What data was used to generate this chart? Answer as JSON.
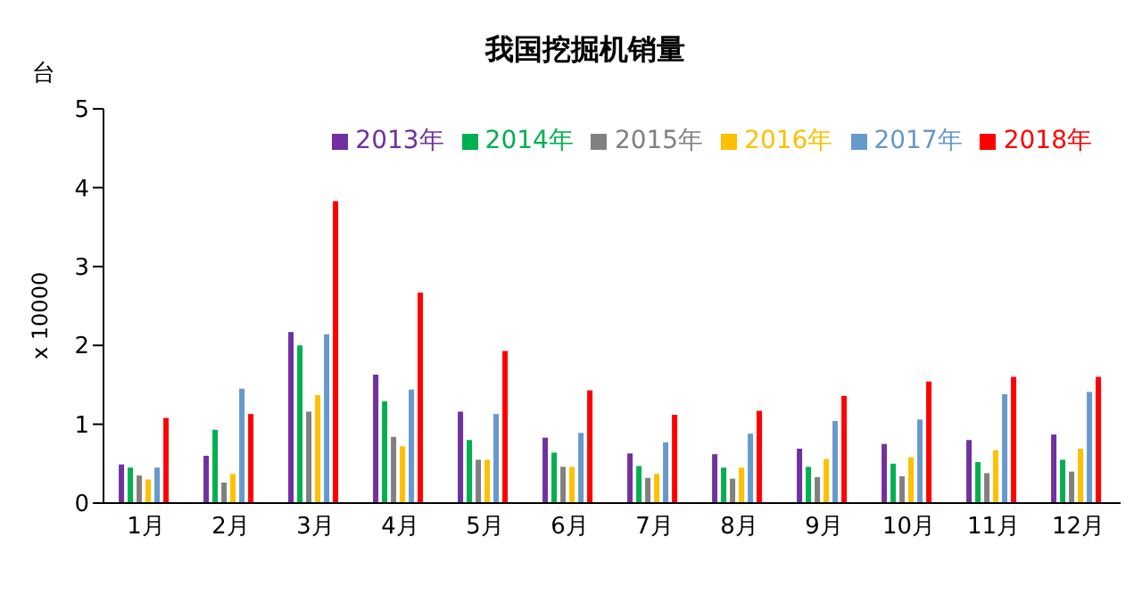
{
  "chart_data": {
    "type": "bar",
    "title": "我国挖掘机销量",
    "ylabel": "x 10000",
    "annotations": [
      "台"
    ],
    "categories": [
      "1月",
      "2月",
      "3月",
      "4月",
      "5月",
      "6月",
      "7月",
      "8月",
      "9月",
      "10月",
      "11月",
      "12月"
    ],
    "series": [
      {
        "name": "2013年",
        "color": "#7030a0",
        "values": [
          0.49,
          0.6,
          2.17,
          1.63,
          1.16,
          0.83,
          0.63,
          0.62,
          0.69,
          0.75,
          0.8,
          0.87
        ]
      },
      {
        "name": "2014年",
        "color": "#00b050",
        "values": [
          0.45,
          0.93,
          2.0,
          1.29,
          0.8,
          0.64,
          0.47,
          0.45,
          0.46,
          0.5,
          0.52,
          0.55
        ]
      },
      {
        "name": "2015年",
        "color": "#808080",
        "values": [
          0.35,
          0.26,
          1.16,
          0.84,
          0.55,
          0.46,
          0.32,
          0.31,
          0.33,
          0.34,
          0.38,
          0.4
        ]
      },
      {
        "name": "2016年",
        "color": "#ffc000",
        "values": [
          0.3,
          0.37,
          1.37,
          0.72,
          0.55,
          0.46,
          0.37,
          0.45,
          0.56,
          0.58,
          0.67,
          0.69
        ]
      },
      {
        "name": "2017年",
        "color": "#6699cc",
        "values": [
          0.45,
          1.45,
          2.14,
          1.44,
          1.13,
          0.89,
          0.77,
          0.88,
          1.04,
          1.06,
          1.38,
          1.41
        ]
      },
      {
        "name": "2018年",
        "color": "#ff0000",
        "values": [
          1.08,
          1.13,
          3.83,
          2.67,
          1.93,
          1.43,
          1.12,
          1.17,
          1.36,
          1.54,
          1.6,
          1.6
        ]
      }
    ],
    "ylim": [
      0,
      5
    ],
    "yticks": [
      0,
      1,
      2,
      3,
      4,
      5
    ],
    "grid": false,
    "legend": "top right"
  }
}
